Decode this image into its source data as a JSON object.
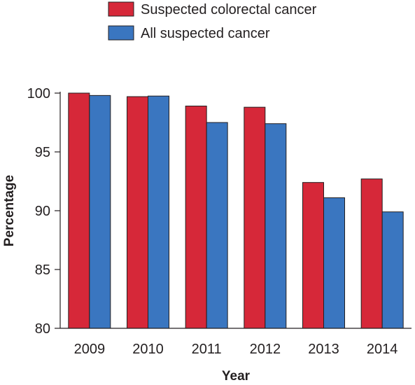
{
  "chart_data": {
    "type": "bar",
    "categories": [
      "2009",
      "2010",
      "2011",
      "2012",
      "2013",
      "2014"
    ],
    "series": [
      {
        "name": "Suspected colorectal cancer",
        "color": "#d62839",
        "values": [
          100.0,
          99.7,
          98.9,
          98.8,
          92.4,
          92.7
        ]
      },
      {
        "name": "All suspected cancer",
        "color": "#3a76c0",
        "values": [
          99.8,
          99.75,
          97.5,
          97.4,
          91.1,
          89.9
        ]
      }
    ],
    "xlabel": "Year",
    "ylabel": "Percentage",
    "ylim": [
      80,
      100
    ],
    "yticks": [
      80,
      85,
      90,
      95,
      100
    ],
    "grid": false,
    "legend_position": "top"
  }
}
